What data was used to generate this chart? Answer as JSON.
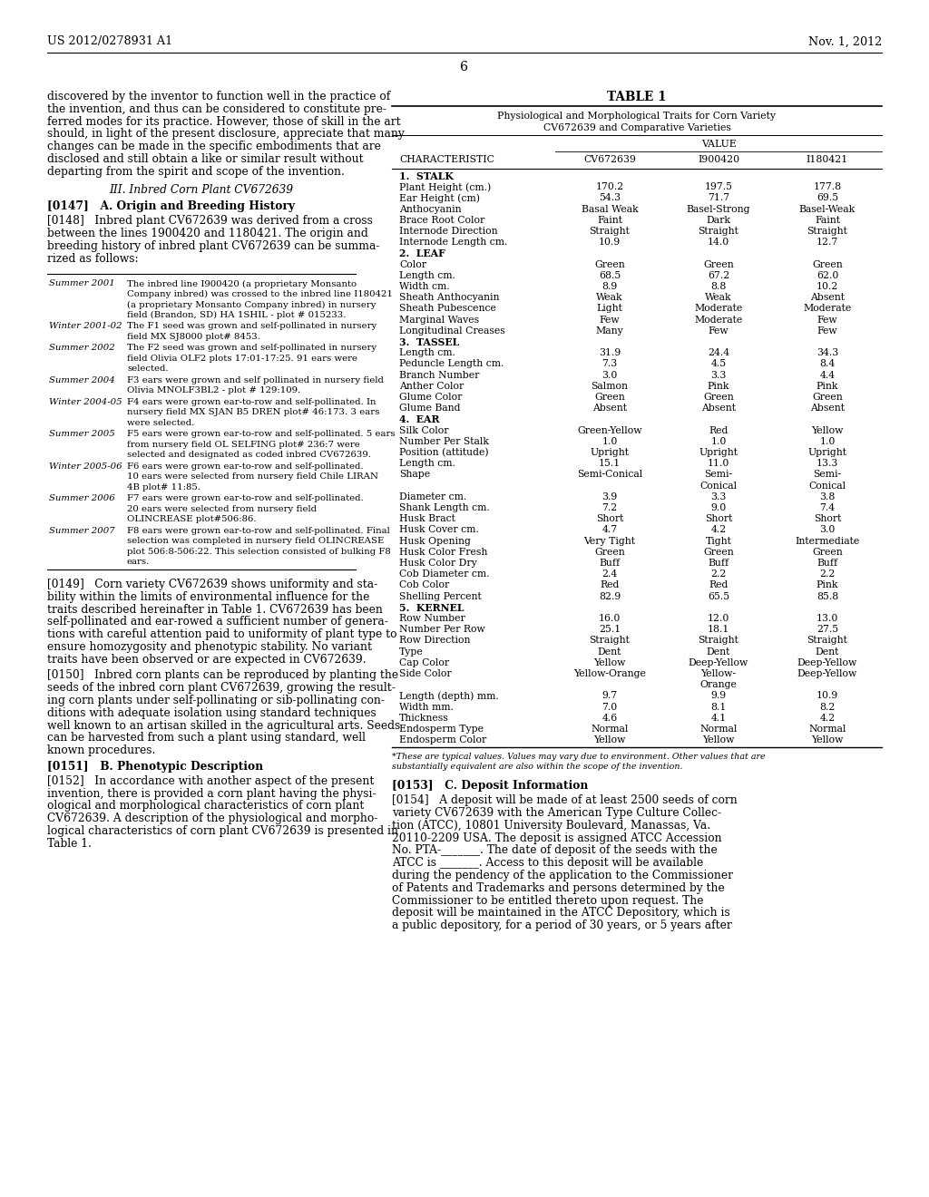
{
  "header_left": "US 2012/0278931 A1",
  "header_right": "Nov. 1, 2012",
  "page_number": "6",
  "left_text_blocks": [
    "discovered by the inventor to function well in the practice of",
    "the invention, and thus can be considered to constitute pre-",
    "ferred modes for its practice. However, those of skill in the art",
    "should, in light of the present disclosure, appreciate that many",
    "changes can be made in the specific embodiments that are",
    "disclosed and still obtain a like or similar result without",
    "departing from the spirit and scope of the invention."
  ],
  "left_section_heading": "III. Inbred Corn Plant CV672639",
  "para_147": "[0147]   A. Origin and Breeding History",
  "para_148_lines": [
    "[0148]   Inbred plant CV672639 was derived from a cross",
    "between the lines 1900420 and 1180421. The origin and",
    "breeding history of inbred plant CV672639 can be summa-",
    "rized as follows:"
  ],
  "timeline": [
    [
      "Summer 2001",
      "The inbred line I900420 (a proprietary Monsanto",
      "Company inbred) was crossed to the inbred line I180421",
      "(a proprietary Monsanto Company inbred) in nursery",
      "field (Brandon, SD) HA 1SHIL - plot # 015233."
    ],
    [
      "Winter 2001-02",
      "The F1 seed was grown and self-pollinated in nursery",
      "field MX SJ8000 plot# 8453."
    ],
    [
      "Summer 2002",
      "The F2 seed was grown and self-pollinated in nursery",
      "field Olivia OLF2 plots 17:01-17:25. 91 ears were",
      "selected."
    ],
    [
      "Summer 2004",
      "F3 ears were grown and self pollinated in nursery field",
      "Olivia MNOLF3BL2 - plot # 129:109."
    ],
    [
      "Winter 2004-05",
      "F4 ears were grown ear-to-row and self-pollinated. In",
      "nursery field MX SJAN B5 DREN plot# 46:173. 3 ears",
      "were selected."
    ],
    [
      "Summer 2005",
      "F5 ears were grown ear-to-row and self-pollinated. 5 ears",
      "from nursery field OL SELFING plot# 236:7 were",
      "selected and designated as coded inbred CV672639."
    ],
    [
      "Winter 2005-06",
      "F6 ears were grown ear-to-row and self-pollinated.",
      "10 ears were selected from nursery field Chile LIRAN",
      "4B plot# 11:85."
    ],
    [
      "Summer 2006",
      "F7 ears were grown ear-to-row and self-pollinated.",
      "20 ears were selected from nursery field",
      "OLINCREASE plot#506:86."
    ],
    [
      "Summer 2007",
      "F8 ears were grown ear-to-row and self-pollinated. Final",
      "selection was completed in nursery field OLINCREASE",
      "plot 506:8-506:22. This selection consisted of bulking F8",
      "ears."
    ]
  ],
  "para_149_lines": [
    "[0149]   Corn variety CV672639 shows uniformity and sta-",
    "bility within the limits of environmental influence for the",
    "traits described hereinafter in Table 1. CV672639 has been",
    "self-pollinated and ear-rowed a sufficient number of genera-",
    "tions with careful attention paid to uniformity of plant type to",
    "ensure homozygosity and phenotypic stability. No variant",
    "traits have been observed or are expected in CV672639."
  ],
  "para_150_lines": [
    "[0150]   Inbred corn plants can be reproduced by planting the",
    "seeds of the inbred corn plant CV672639, growing the result-",
    "ing corn plants under self-pollinating or sib-pollinating con-",
    "ditions with adequate isolation using standard techniques",
    "well known to an artisan skilled in the agricultural arts. Seeds",
    "can be harvested from such a plant using standard, well",
    "known procedures."
  ],
  "para_151": "[0151]   B. Phenotypic Description",
  "para_152_lines": [
    "[0152]   In accordance with another aspect of the present",
    "invention, there is provided a corn plant having the physi-",
    "ological and morphological characteristics of corn plant",
    "CV672639. A description of the physiological and morpho-",
    "logical characteristics of corn plant CV672639 is presented in",
    "Table 1."
  ],
  "table_title": "TABLE 1",
  "table_subtitle1": "Physiological and Morphological Traits for Corn Variety",
  "table_subtitle2": "CV672639 and Comparative Varieties",
  "col_header_char": "CHARACTERISTIC",
  "col_header_val": "VALUE",
  "col_headers_vals": [
    "CV672639",
    "I900420",
    "I180421"
  ],
  "table_data": [
    [
      "1.  STALK",
      "",
      "",
      "",
      true
    ],
    [
      "    Plant Height (cm.)",
      "170.2",
      "197.5",
      "177.8",
      false
    ],
    [
      "    Ear Height (cm)",
      "54.3",
      "71.7",
      "69.5",
      false
    ],
    [
      "    Anthocyanin",
      "Basal Weak",
      "Basel-Strong",
      "Basel-Weak",
      false
    ],
    [
      "    Brace Root Color",
      "Faint",
      "Dark",
      "Faint",
      false
    ],
    [
      "    Internode Direction",
      "Straight",
      "Straight",
      "Straight",
      false
    ],
    [
      "    Internode Length cm.",
      "10.9",
      "14.0",
      "12.7",
      false
    ],
    [
      "2.  LEAF",
      "",
      "",
      "",
      true
    ],
    [
      "    Color",
      "Green",
      "Green",
      "Green",
      false
    ],
    [
      "    Length cm.",
      "68.5",
      "67.2",
      "62.0",
      false
    ],
    [
      "    Width cm.",
      "8.9",
      "8.8",
      "10.2",
      false
    ],
    [
      "    Sheath Anthocyanin",
      "Weak",
      "Weak",
      "Absent",
      false
    ],
    [
      "    Sheath Pubescence",
      "Light",
      "Moderate",
      "Moderate",
      false
    ],
    [
      "    Marginal Waves",
      "Few",
      "Moderate",
      "Few",
      false
    ],
    [
      "    Longitudinal Creases",
      "Many",
      "Few",
      "Few",
      false
    ],
    [
      "3.  TASSEL",
      "",
      "",
      "",
      true
    ],
    [
      "    Length cm.",
      "31.9",
      "24.4",
      "34.3",
      false
    ],
    [
      "    Peduncle Length cm.",
      "7.3",
      "4.5",
      "8.4",
      false
    ],
    [
      "    Branch Number",
      "3.0",
      "3.3",
      "4.4",
      false
    ],
    [
      "    Anther Color",
      "Salmon",
      "Pink",
      "Pink",
      false
    ],
    [
      "    Glume Color",
      "Green",
      "Green",
      "Green",
      false
    ],
    [
      "    Glume Band",
      "Absent",
      "Absent",
      "Absent",
      false
    ],
    [
      "4.  EAR",
      "",
      "",
      "",
      true
    ],
    [
      "    Silk Color",
      "Green-Yellow",
      "Red",
      "Yellow",
      false
    ],
    [
      "    Number Per Stalk",
      "1.0",
      "1.0",
      "1.0",
      false
    ],
    [
      "    Position (attitude)",
      "Upright",
      "Upright",
      "Upright",
      false
    ],
    [
      "    Length cm.",
      "15.1",
      "11.0",
      "13.3",
      false
    ],
    [
      "    Shape",
      "Semi-Conical",
      "Semi-\nConical",
      "Semi-\nConical",
      false
    ],
    [
      "    Diameter cm.",
      "3.9",
      "3.3",
      "3.8",
      false
    ],
    [
      "    Shank Length cm.",
      "7.2",
      "9.0",
      "7.4",
      false
    ],
    [
      "    Husk Bract",
      "Short",
      "Short",
      "Short",
      false
    ],
    [
      "    Husk Cover cm.",
      "4.7",
      "4.2",
      "3.0",
      false
    ],
    [
      "    Husk Opening",
      "Very Tight",
      "Tight",
      "Intermediate",
      false
    ],
    [
      "    Husk Color Fresh",
      "Green",
      "Green",
      "Green",
      false
    ],
    [
      "    Husk Color Dry",
      "Buff",
      "Buff",
      "Buff",
      false
    ],
    [
      "    Cob Diameter cm.",
      "2.4",
      "2.2",
      "2.2",
      false
    ],
    [
      "    Cob Color",
      "Red",
      "Red",
      "Pink",
      false
    ],
    [
      "    Shelling Percent",
      "82.9",
      "65.5",
      "85.8",
      false
    ],
    [
      "5.  KERNEL",
      "",
      "",
      "",
      true
    ],
    [
      "    Row Number",
      "16.0",
      "12.0",
      "13.0",
      false
    ],
    [
      "    Number Per Row",
      "25.1",
      "18.1",
      "27.5",
      false
    ],
    [
      "    Row Direction",
      "Straight",
      "Straight",
      "Straight",
      false
    ],
    [
      "    Type",
      "Dent",
      "Dent",
      "Dent",
      false
    ],
    [
      "    Cap Color",
      "Yellow",
      "Deep-Yellow",
      "Deep-Yellow",
      false
    ],
    [
      "    Side Color",
      "Yellow-Orange",
      "Yellow-\nOrange",
      "Deep-Yellow",
      false
    ],
    [
      "    Length (depth) mm.",
      "9.7",
      "9.9",
      "10.9",
      false
    ],
    [
      "    Width mm.",
      "7.0",
      "8.1",
      "8.2",
      false
    ],
    [
      "    Thickness",
      "4.6",
      "4.1",
      "4.2",
      false
    ],
    [
      "    Endosperm Type",
      "Normal",
      "Normal",
      "Normal",
      false
    ],
    [
      "    Endosperm Color",
      "Yellow",
      "Yellow",
      "Yellow",
      false
    ]
  ],
  "table_footnote_lines": [
    "*These are typical values. Values may vary due to environment. Other values that are",
    "substantially equivalent are also within the scope of the invention."
  ],
  "para_153": "[0153]   C. Deposit Information",
  "para_154_lines": [
    "[0154]   A deposit will be made of at least 2500 seeds of corn",
    "variety CV672639 with the American Type Culture Collec-",
    "tion (ATCC), 10801 University Boulevard, Manassas, Va.",
    "20110-2209 USA. The deposit is assigned ATCC Accession",
    "No. PTA-_______. The date of deposit of the seeds with the",
    "ATCC is _______. Access to this deposit will be available",
    "during the pendency of the application to the Commissioner",
    "of Patents and Trademarks and persons determined by the",
    "Commissioner to be entitled thereto upon request. The",
    "deposit will be maintained in the ATCC Depository, which is",
    "a public depository, for a period of 30 years, or 5 years after"
  ]
}
